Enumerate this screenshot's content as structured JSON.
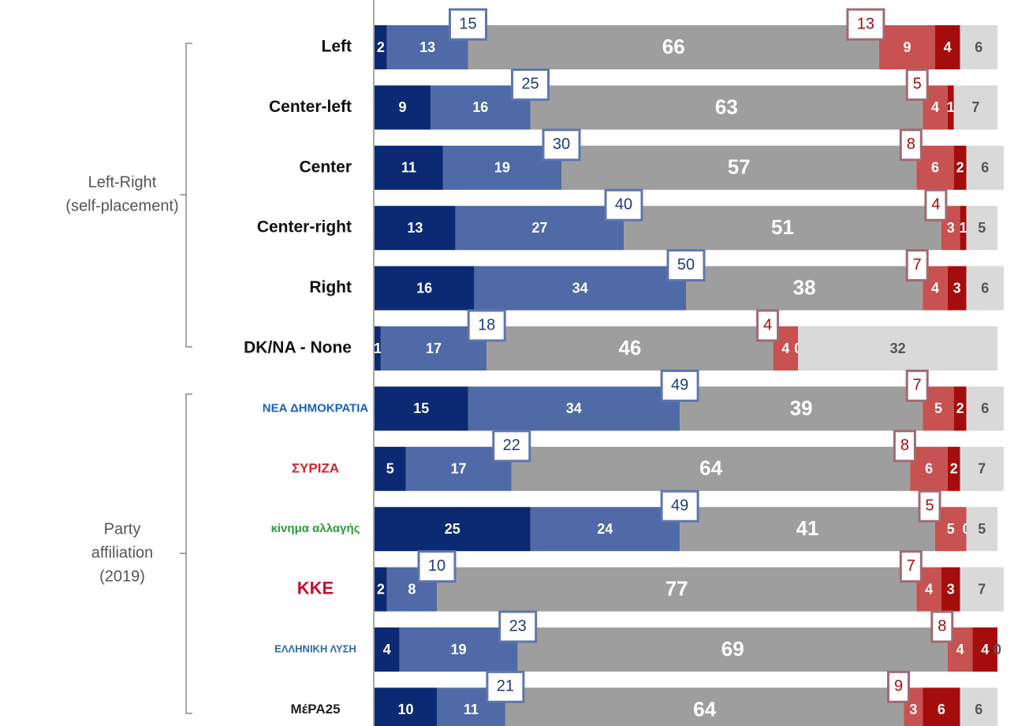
{
  "chart_data": {
    "type": "stacked-bar",
    "groups": [
      {
        "lines": [
          "Left-Right",
          "(self-placement)"
        ]
      },
      {
        "lines": [
          "Party",
          "affiliation",
          "(2019)"
        ]
      }
    ],
    "categories": [
      "Left",
      "Center-left",
      "Center",
      "Center-right",
      "Right",
      "DK/NA - None",
      "ΝΕΑ ΔΗΜΟΚΡΑΤΙΑ",
      "ΣΥΡΙΖΑ",
      "κίνημα αλλαγής",
      "ΚΚΕ",
      "ΕΛΛΗΝΙΚΗ ΛΥΣΗ",
      "ΜέΡΑ25"
    ],
    "series": [
      {
        "color": "#0c2a73",
        "values": [
          2,
          9,
          11,
          13,
          16,
          1,
          15,
          5,
          25,
          2,
          4,
          10
        ]
      },
      {
        "color": "#4f6aa6",
        "values": [
          13,
          16,
          19,
          27,
          34,
          17,
          34,
          17,
          24,
          8,
          19,
          11
        ]
      },
      {
        "color": "#9e9e9e",
        "values": [
          66,
          63,
          57,
          51,
          38,
          46,
          39,
          64,
          41,
          77,
          69,
          64
        ]
      },
      {
        "color": "#c85151",
        "values": [
          9,
          4,
          6,
          3,
          4,
          4,
          5,
          6,
          5,
          4,
          4,
          3
        ]
      },
      {
        "color": "#a50d0d",
        "values": [
          4,
          1,
          2,
          1,
          3,
          0,
          2,
          2,
          0,
          3,
          4,
          6
        ]
      },
      {
        "color": "#d9d9d9",
        "values": [
          6,
          7,
          6,
          5,
          6,
          32,
          6,
          7,
          5,
          7,
          0,
          6
        ]
      }
    ],
    "blue_totals": {
      "color": "#1f3a7a",
      "values": [
        15,
        25,
        30,
        40,
        50,
        18,
        49,
        22,
        49,
        10,
        23,
        21
      ]
    },
    "red_totals": {
      "color": "#a50d0d",
      "values": [
        13,
        5,
        8,
        4,
        7,
        4,
        7,
        8,
        5,
        7,
        8,
        9
      ]
    },
    "xlim": [
      0,
      100
    ]
  }
}
